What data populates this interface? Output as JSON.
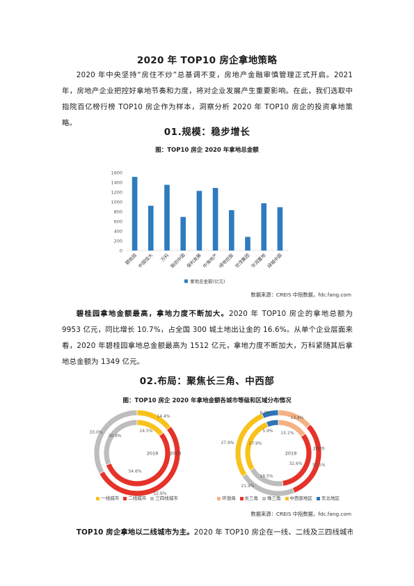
{
  "document": {
    "title": "2020 年 TOP10 房企拿地策略",
    "intro": "2020 年中央坚持“房住不炒”总基调不变，房地产金融审慎管理正式开启。2021 年，房地产企业把控好拿地节奏和力度，将对企业发展产生重要影响。在此，我们选取中指院百亿榜行榜 TOP10 房企作为样本，洞察分析 2020 年 TOP10 房企的投资拿地策略。",
    "section_1": {
      "heading": "01.规模：稳步增长",
      "source": "数据来源：CREIS 中指数据，fdc.fang.com",
      "paragraph_lead": "碧桂园拿地金额最高，拿地力度不断加大。",
      "paragraph_body": "2020 年 TOP10 房企的拿地总额为 9953 亿元，同比增长 10.7%，占全国 300 城土地出让金的 16.6%。从单个企业层面来看，2020 年碧桂园拿地总金额最高为 1512 亿元，拿地力度不断加大，万科紧随其后拿地总金额为 1349 亿元。"
    },
    "section_2": {
      "heading": "02.布局：聚焦长三角、中西部",
      "caption": "图：TOP10 房企 2020 年拿地金额各城市等级和区域分布情况",
      "source": "数据来源：CREIS 中指数据，fdc.fang.com",
      "paragraph_lead": "TOP10 房企拿地以二线城市为主。",
      "paragraph_body": "2020 年 TOP10 房企在一线、二线及三四线城市的拿"
    }
  },
  "chart_data": [
    {
      "type": "bar",
      "title": "图：TOP10 房企 2020 年拿地总金额",
      "categories": [
        "碧桂园",
        "中国恒大",
        "万科",
        "融创中国",
        "保利发展",
        "中海地产",
        "绿地控股",
        "世茂集团",
        "华润置地",
        "绿城中国"
      ],
      "series": [
        {
          "name": "拿地总金额(亿元)",
          "values": [
            1512,
            920,
            1349,
            690,
            1225,
            1285,
            830,
            280,
            970,
            890
          ]
        }
      ],
      "ylim": [
        0,
        1600
      ],
      "yticks": [
        1600,
        1400,
        1200,
        1000,
        800,
        600,
        400,
        200,
        0
      ],
      "grid": false,
      "legend": "bottom",
      "colors": [
        "#2E7BBF"
      ]
    },
    {
      "type": "pie",
      "style": "doughnut",
      "categories": [
        "一线城市",
        "二线城市",
        "三四线城市"
      ],
      "series": [
        {
          "name": "2020",
          "values": [
            14.4,
            52.6,
            33.0
          ],
          "data_labels": [
            "14.4%",
            "52.6%",
            "33.0%"
          ]
        },
        {
          "name": "2019",
          "values": [
            14.5,
            54.6,
            30.9
          ],
          "data_labels": [
            "14.5%",
            "54.6%",
            "30.9%"
          ]
        }
      ],
      "legend": "bottom",
      "colors": [
        "#F8C21C",
        "#E5332A",
        "#BDBDBD"
      ]
    },
    {
      "type": "pie",
      "style": "doughnut",
      "categories": [
        "环渤海",
        "长三角",
        "珠三角",
        "中西部地区",
        "东北地区"
      ],
      "series": [
        {
          "name": "2020",
          "values": [
            13.4,
            30.5,
            21.9,
            27.9,
            6.3
          ],
          "data_labels": [
            "13.4%",
            "30.5%",
            "21.9%",
            "27.9%",
            "6.3%"
          ]
        },
        {
          "name": "2019",
          "values": [
            15.1,
            32.6,
            18.5,
            27.9,
            5.9
          ],
          "data_labels": [
            "15.1%",
            "32.6%",
            "18.5%",
            "27.9%",
            "5.9%"
          ]
        }
      ],
      "legend": "bottom",
      "colors": [
        "#F4B183",
        "#E5332A",
        "#BDBDBD",
        "#F8C21C",
        "#2E75B6"
      ]
    }
  ]
}
